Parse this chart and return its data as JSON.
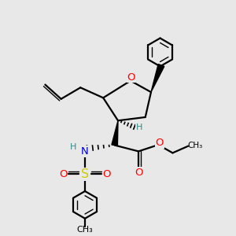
{
  "bg_color": "#e8e8e8",
  "atom_colors": {
    "O": "#ff0000",
    "N": "#0000cd",
    "S": "#cccc00",
    "C": "#000000",
    "H": "#2e8b8b"
  },
  "ring_r": 0.62,
  "tol_r": 0.6,
  "lw": 1.6,
  "fs": 9.5,
  "fs_small": 8.0
}
